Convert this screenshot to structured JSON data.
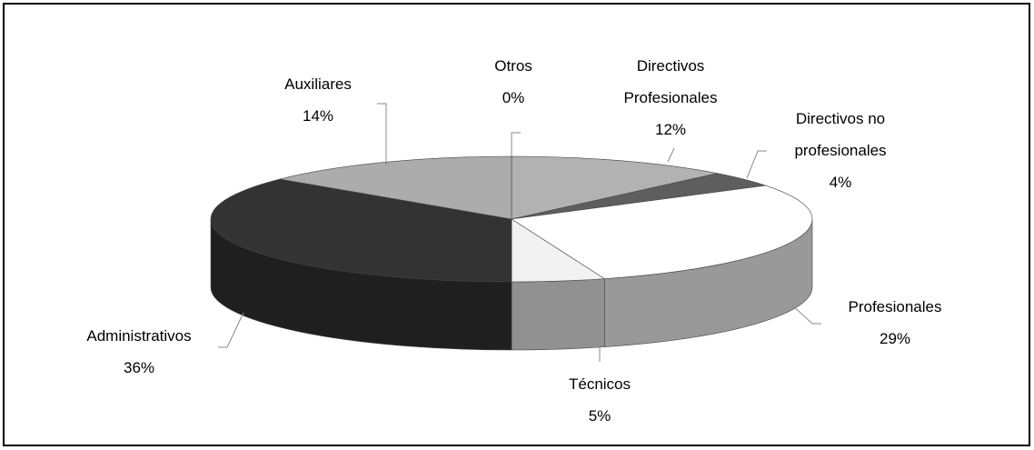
{
  "chart_data": {
    "type": "pie3d",
    "categories": [
      "Otros",
      "Directivos Profesionales",
      "Directivos no profesionales",
      "Profesionales",
      "Técnicos",
      "Administrativos",
      "Auxiliares"
    ],
    "values": [
      0,
      12,
      4,
      29,
      5,
      36,
      14
    ],
    "value_labels": [
      "0%",
      "12%",
      "4%",
      "29%",
      "5%",
      "36%",
      "14%"
    ],
    "colors": [
      "#c8c8c8",
      "#b2b2b2",
      "#5e5e5e",
      "#ffffff",
      "#f2f2f2",
      "#333333",
      "#acacac"
    ]
  }
}
